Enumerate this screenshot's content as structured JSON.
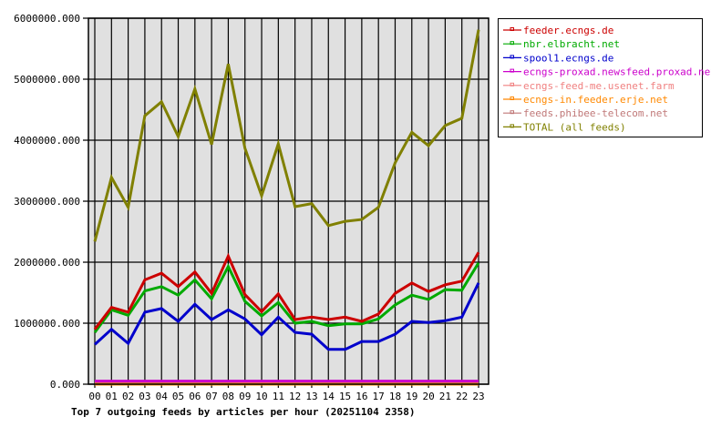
{
  "chart_data": {
    "type": "line",
    "title": "Top 7 outgoing feeds by articles per hour (20251104 2358)",
    "xlabel": "",
    "ylabel": "",
    "ylim": [
      0,
      6000000
    ],
    "grid": true,
    "legend_position": "right",
    "y_ticks": [
      "0.000",
      "1000000.000",
      "2000000.000",
      "3000000.000",
      "4000000.000",
      "5000000.000",
      "6000000.000"
    ],
    "categories": [
      "00",
      "01",
      "02",
      "03",
      "04",
      "05",
      "06",
      "07",
      "08",
      "09",
      "10",
      "11",
      "12",
      "13",
      "14",
      "15",
      "16",
      "17",
      "18",
      "19",
      "20",
      "21",
      "22",
      "23"
    ],
    "series": [
      {
        "name": "feeder.ecngs.de",
        "color": "#cc0000",
        "values": [
          900000,
          1260000,
          1180000,
          1710000,
          1820000,
          1600000,
          1840000,
          1490000,
          2100000,
          1470000,
          1190000,
          1480000,
          1060000,
          1100000,
          1060000,
          1100000,
          1030000,
          1150000,
          1490000,
          1660000,
          1520000,
          1630000,
          1690000,
          2160000
        ]
      },
      {
        "name": "nbr.elbracht.net",
        "color": "#00aa00",
        "values": [
          850000,
          1220000,
          1130000,
          1530000,
          1600000,
          1460000,
          1710000,
          1400000,
          1930000,
          1360000,
          1120000,
          1340000,
          1000000,
          1030000,
          960000,
          990000,
          990000,
          1070000,
          1300000,
          1460000,
          1390000,
          1550000,
          1540000,
          1990000
        ]
      },
      {
        "name": "spool1.ecngs.de",
        "color": "#0000cc",
        "values": [
          650000,
          900000,
          670000,
          1180000,
          1240000,
          1030000,
          1310000,
          1060000,
          1220000,
          1070000,
          810000,
          1100000,
          850000,
          820000,
          570000,
          570000,
          700000,
          700000,
          820000,
          1030000,
          1010000,
          1040000,
          1100000,
          1660000
        ]
      },
      {
        "name": "ecngs-proxad.newsfeed.proxad.net",
        "color": "#cc00cc",
        "values": [
          50000,
          50000,
          50000,
          50000,
          50000,
          50000,
          50000,
          50000,
          50000,
          50000,
          50000,
          50000,
          50000,
          50000,
          50000,
          50000,
          50000,
          50000,
          50000,
          50000,
          50000,
          50000,
          50000,
          50000
        ]
      },
      {
        "name": "ecngs-feed-me.usenet.farm",
        "color": "#f08080",
        "values": [
          0,
          0,
          0,
          0,
          0,
          0,
          0,
          0,
          0,
          10000,
          10000,
          0,
          0,
          0,
          0,
          0,
          0,
          0,
          0,
          0,
          0,
          0,
          0,
          0
        ]
      },
      {
        "name": "ecngs-in.feeder.erje.net",
        "color": "#ff8800",
        "values": [
          0,
          0,
          0,
          0,
          0,
          0,
          0,
          0,
          0,
          0,
          0,
          0,
          0,
          0,
          0,
          0,
          0,
          0,
          0,
          0,
          0,
          0,
          0,
          0
        ]
      },
      {
        "name": "feeds.phibee-telecom.net",
        "color": "#c07878",
        "values": [
          20000,
          20000,
          20000,
          20000,
          20000,
          20000,
          20000,
          20000,
          20000,
          20000,
          20000,
          20000,
          20000,
          20000,
          20000,
          20000,
          20000,
          20000,
          20000,
          20000,
          20000,
          20000,
          20000,
          20000
        ]
      },
      {
        "name": "TOTAL (all feeds)",
        "color": "#808000",
        "values": [
          2340000,
          3390000,
          2900000,
          4400000,
          4630000,
          4060000,
          4840000,
          3930000,
          5250000,
          3870000,
          3090000,
          3940000,
          2910000,
          2960000,
          2600000,
          2670000,
          2700000,
          2900000,
          3630000,
          4130000,
          3910000,
          4240000,
          4360000,
          5810000
        ]
      }
    ]
  }
}
